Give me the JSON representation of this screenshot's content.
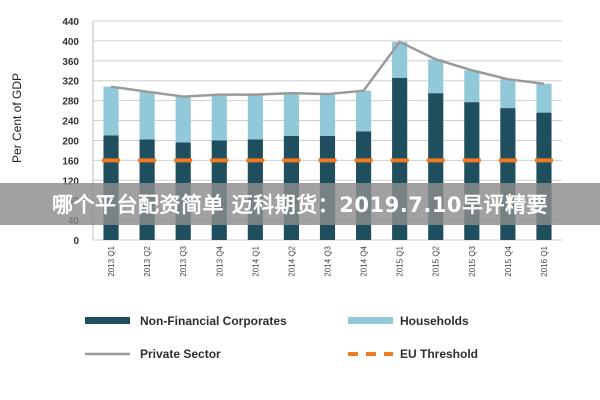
{
  "overlay_text": "哪个平台配资简单 迈科期货：2019.7.10早评精要",
  "colors": {
    "non_financial": "#1f4e5f",
    "households": "#92c9d9",
    "private_sector": "#9a9a9a",
    "eu_threshold": "#f07a22",
    "grid": "#cfcfcf"
  },
  "chart_data": {
    "type": "bar",
    "stacked": true,
    "categories": [
      "2013 Q1",
      "2013 Q2",
      "2013 Q3",
      "2013 Q4",
      "2014 Q1",
      "2014 Q2",
      "2014 Q3",
      "2014 Q4",
      "2015 Q1",
      "2015 Q2",
      "2015 Q3",
      "2015 Q4",
      "2016 Q1"
    ],
    "series": [
      {
        "name": "Non-Financial Corporates",
        "type": "bar",
        "color": "#1f4e5f",
        "values": [
          210,
          202,
          196,
          200,
          202,
          209,
          209,
          218,
          326,
          295,
          277,
          265,
          256
        ]
      },
      {
        "name": "Households",
        "type": "bar",
        "color": "#92c9d9",
        "values": [
          98,
          96,
          92,
          92,
          90,
          86,
          84,
          82,
          72,
          68,
          64,
          58,
          58
        ]
      },
      {
        "name": "Private Sector",
        "type": "line",
        "color": "#9a9a9a",
        "values": [
          308,
          298,
          288,
          292,
          292,
          295,
          293,
          300,
          398,
          363,
          341,
          323,
          314
        ]
      },
      {
        "name": "EU Threshold",
        "type": "line-dashed",
        "color": "#f07a22",
        "values": [
          160,
          160,
          160,
          160,
          160,
          160,
          160,
          160,
          160,
          160,
          160,
          160,
          160
        ]
      }
    ],
    "ylabel": "Per Cent of GDP",
    "xlabel": "",
    "ylim": [
      0,
      440
    ],
    "yticks": [
      0,
      40,
      80,
      120,
      160,
      200,
      240,
      280,
      320,
      360,
      400,
      440
    ],
    "grid": true,
    "legend": {
      "placement": "bottom",
      "items": [
        "Non-Financial Corporates",
        "Households",
        "Private Sector",
        "EU Threshold"
      ]
    }
  }
}
